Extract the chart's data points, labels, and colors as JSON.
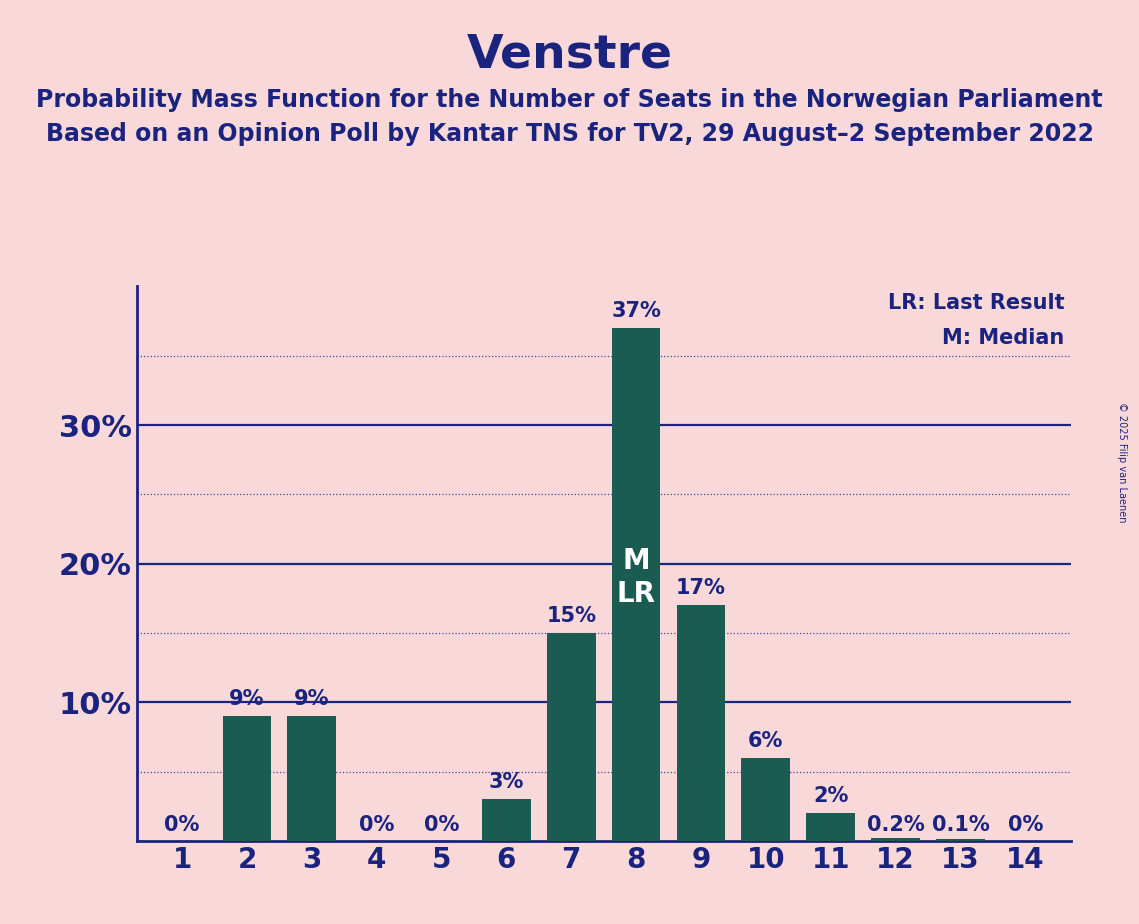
{
  "title": "Venstre",
  "subtitle1": "Probability Mass Function for the Number of Seats in the Norwegian Parliament",
  "subtitle2": "Based on an Opinion Poll by Kantar TNS for TV2, 29 August–2 September 2022",
  "copyright": "© 2025 Filip van Laenen",
  "categories": [
    1,
    2,
    3,
    4,
    5,
    6,
    7,
    8,
    9,
    10,
    11,
    12,
    13,
    14
  ],
  "values": [
    0.0,
    9.0,
    9.0,
    0.0,
    0.0,
    3.0,
    15.0,
    37.0,
    17.0,
    6.0,
    2.0,
    0.2,
    0.1,
    0.0
  ],
  "labels": [
    "0%",
    "9%",
    "9%",
    "0%",
    "0%",
    "3%",
    "15%",
    "37%",
    "17%",
    "6%",
    "2%",
    "0.2%",
    "0.1%",
    "0%"
  ],
  "bar_color": "#1a5c52",
  "background_color": "#f9d8da",
  "text_color": "#1a237e",
  "ylim": [
    0,
    40
  ],
  "median_seat": 8,
  "lr_seat": 8,
  "legend_lr": "LR: Last Result",
  "legend_m": "M: Median",
  "title_fontsize": 34,
  "subtitle_fontsize": 17,
  "label_fontsize": 15,
  "tick_fontsize": 20,
  "ytick_fontsize": 22,
  "ml_fontsize": 20,
  "legend_fontsize": 15,
  "copyright_fontsize": 7
}
